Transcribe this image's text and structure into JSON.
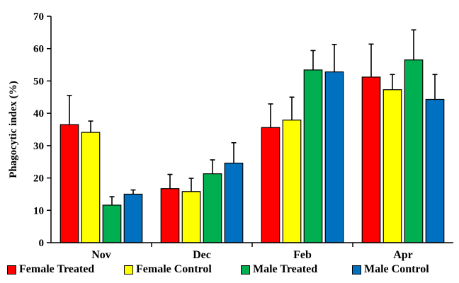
{
  "chart_data": {
    "type": "bar",
    "title": "",
    "xlabel": "",
    "ylabel": "Phagocytic index (%)",
    "ylim": [
      0,
      70
    ],
    "yticks": [
      "0",
      "10",
      "20",
      "30",
      "40",
      "50",
      "60",
      "70"
    ],
    "categories": [
      "Nov",
      "Dec",
      "Feb",
      "Apr"
    ],
    "series": [
      {
        "name": "Female Treated",
        "color": "#ff0000",
        "values": [
          36.5,
          16.7,
          35.6,
          51.2
        ],
        "errors": [
          9.0,
          4.4,
          7.3,
          10.2
        ]
      },
      {
        "name": "Female Control",
        "color": "#ffff00",
        "values": [
          34.1,
          15.8,
          37.9,
          47.3
        ],
        "errors": [
          3.5,
          4.1,
          7.1,
          4.7
        ]
      },
      {
        "name": "Male Treated",
        "color": "#00b050",
        "values": [
          11.6,
          21.3,
          53.4,
          56.5
        ],
        "errors": [
          2.6,
          4.3,
          6.0,
          9.3
        ]
      },
      {
        "name": "Male Control",
        "color": "#0070c0",
        "values": [
          15.0,
          24.6,
          52.8,
          44.3
        ],
        "errors": [
          1.3,
          6.3,
          8.5,
          7.7
        ]
      }
    ],
    "grid": false,
    "legend_position": "bottom"
  }
}
